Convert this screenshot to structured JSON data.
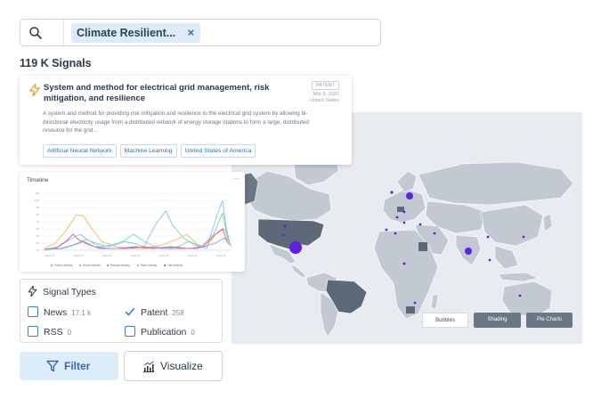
{
  "search": {
    "chip_label": "Climate Resilient...",
    "chip_remove": "×"
  },
  "results": {
    "count_label": "119 K Signals"
  },
  "card": {
    "title": "System and method for electrical grid management, risk mitigation, and resilience",
    "badge": "PATENT",
    "date": "Mar 8, 2022",
    "country": "United States",
    "description": "A system and method for providing risk mitigation and resilience to the electrical grid system by allowing bi-directional electricity usage from a distributed network of energy storage stations to form a large, distributed resource for the grid...",
    "tags": [
      "Artificial Neural Network",
      "Machine Learning",
      "United States of America"
    ]
  },
  "timeline": {
    "title": "Timeline",
    "more": "···",
    "legend": [
      "Follow Activity",
      "Share Activity",
      "Rebate Activity",
      "Rate Activity",
      "Like Activity"
    ]
  },
  "signal_types": {
    "heading": "Signal Types",
    "options": [
      {
        "label": "News",
        "count": "17.1 k",
        "checked": false
      },
      {
        "label": "Patent",
        "count": "258",
        "checked": true
      },
      {
        "label": "RSS",
        "count": "0",
        "checked": false
      },
      {
        "label": "Publication",
        "count": "0",
        "checked": false
      }
    ]
  },
  "actions": {
    "filter": "Filter",
    "visualize": "Visualize"
  },
  "map": {
    "modes": [
      "Bubbles",
      "Shading",
      "Pie Charts"
    ],
    "selected_mode": "Bubbles"
  },
  "colors": {
    "accent": "#2f6fb1",
    "bubble": "#5b21e6",
    "highlight_country": "#5d6978",
    "land": "#c2c9d2",
    "ocean": "#e8ecf0"
  }
}
